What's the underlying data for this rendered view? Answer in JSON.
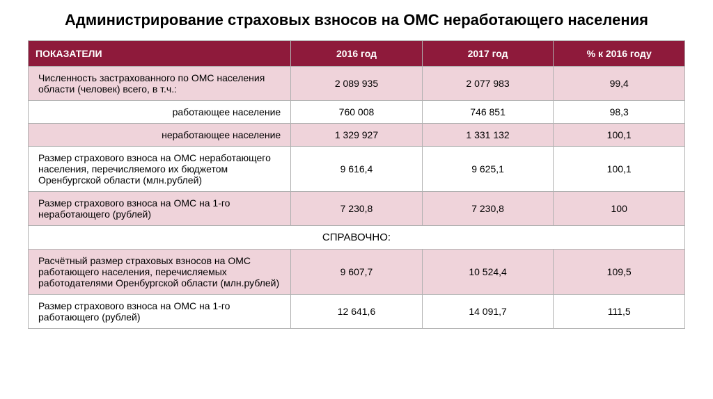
{
  "title": "Администрирование страховых взносов на ОМС неработающего населения",
  "columns": {
    "indicator": "ПОКАЗАТЕЛИ",
    "y2016": "2016 год",
    "y2017": "2017 год",
    "pct": "% к 2016 году"
  },
  "rows": [
    {
      "label": "Численность застрахованного по ОМС населения области (человек) всего, в т.ч.:",
      "v2016": "2 089 935",
      "v2017": "2 077 983",
      "pct": "99,4",
      "shade": true,
      "align": "left"
    },
    {
      "label": "работающее население",
      "v2016": "760 008",
      "v2017": "746 851",
      "pct": "98,3",
      "shade": false,
      "align": "right"
    },
    {
      "label": "неработающее население",
      "v2016": "1 329 927",
      "v2017": "1 331 132",
      "pct": "100,1",
      "shade": true,
      "align": "right"
    },
    {
      "label": "Размер страхового взноса на ОМС неработающего населения, перечисляемого их бюджетом Оренбургской области (млн.рублей)",
      "v2016": "9 616,4",
      "v2017": "9 625,1",
      "pct": "100,1",
      "shade": false,
      "align": "left"
    },
    {
      "label": "Размер страхового взноса на ОМС на 1-го неработающего (рублей)",
      "v2016": "7 230,8",
      "v2017": "7 230,8",
      "pct": "100",
      "shade": true,
      "align": "left"
    }
  ],
  "reference_label": "СПРАВОЧНО:",
  "reference_rows": [
    {
      "label": "Расчётный размер страховых взносов на ОМС работающего населения, перечисляемых работодателями Оренбургской области (млн.рублей)",
      "v2016": "9 607,7",
      "v2017": "10 524,4",
      "pct": "109,5",
      "shade": true,
      "align": "left"
    },
    {
      "label": "Размер страхового взноса на ОМС на 1-го работающего (рублей)",
      "v2016": "12 641,6",
      "v2017": "14 091,7",
      "pct": "111,5",
      "shade": false,
      "align": "left"
    }
  ],
  "colors": {
    "header_bg": "#8e1a3b",
    "header_text": "#ffffff",
    "shade_bg": "#efd3da",
    "plain_bg": "#ffffff",
    "border": "#b0b0b0",
    "text": "#000000"
  },
  "fonts": {
    "title_size": 22,
    "header_size": 14,
    "body_size": 14
  }
}
